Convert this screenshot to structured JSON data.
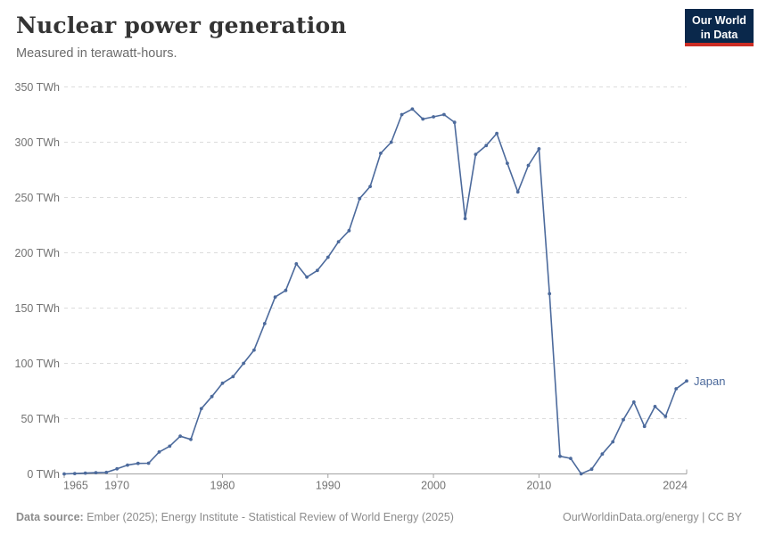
{
  "header": {
    "title": "Nuclear power generation",
    "subtitle": "Measured in terawatt-hours."
  },
  "logo": {
    "line1": "Our World",
    "line2": "in Data",
    "bg_color": "#0a284b",
    "accent_color": "#cc2d24"
  },
  "footer": {
    "source_label": "Data source:",
    "source_text": " Ember (2025); Energy Institute - Statistical Review of World Energy (2025)",
    "link_text": "OurWorldinData.org/energy | CC BY"
  },
  "colors": {
    "series": "#4C6A9C",
    "grid": "#dcdcdc",
    "axis": "#a2a2a2",
    "axis_text": "#737373"
  },
  "chart_data": {
    "type": "line",
    "title": "Nuclear power generation",
    "ylabel": "terawatt-hours",
    "unit": "TWh",
    "ylim": [
      0,
      350
    ],
    "ytick_interval": 50,
    "ytick_labels": [
      "0 TWh",
      "50 TWh",
      "100 TWh",
      "150 TWh",
      "200 TWh",
      "250 TWh",
      "300 TWh",
      "350 TWh"
    ],
    "xticks": [
      1965,
      1970,
      1980,
      1990,
      2000,
      2010,
      2024
    ],
    "grid": "horizontal-dashed",
    "legend_position": "end-of-line",
    "x": [
      1965,
      1966,
      1967,
      1968,
      1969,
      1970,
      1971,
      1972,
      1973,
      1974,
      1975,
      1976,
      1977,
      1978,
      1979,
      1980,
      1981,
      1982,
      1983,
      1984,
      1985,
      1986,
      1987,
      1988,
      1989,
      1990,
      1991,
      1992,
      1993,
      1994,
      1995,
      1996,
      1997,
      1998,
      1999,
      2000,
      2001,
      2002,
      2003,
      2004,
      2005,
      2006,
      2007,
      2008,
      2009,
      2010,
      2011,
      2012,
      2013,
      2014,
      2015,
      2016,
      2017,
      2018,
      2019,
      2020,
      2021,
      2022,
      2023,
      2024
    ],
    "series": [
      {
        "name": "Japan",
        "color": "#4C6A9C",
        "values": [
          0.0,
          0.3,
          0.7,
          1.1,
          1.4,
          4.6,
          8.0,
          9.5,
          9.7,
          19.8,
          25.1,
          34.1,
          31.2,
          59,
          70,
          82,
          88,
          100,
          112,
          136,
          160,
          166,
          190,
          178,
          184,
          196,
          210,
          220,
          249,
          260,
          290,
          300,
          325,
          330,
          321,
          323,
          325,
          318,
          231,
          289,
          297,
          308,
          281,
          255,
          279,
          294,
          163,
          16,
          14,
          0.1,
          4.3,
          18,
          29,
          49,
          65,
          43,
          61,
          52,
          77,
          84
        ]
      }
    ]
  }
}
